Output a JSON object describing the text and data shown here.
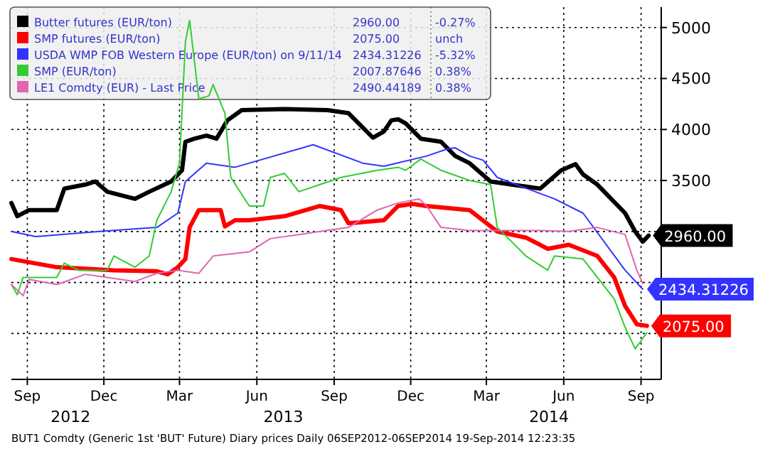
{
  "chart_data": {
    "type": "line",
    "legend": "top left",
    "grid": true,
    "xlim": [
      "2012-08-13",
      "2014-09-25"
    ],
    "xticks": [
      {
        "value": "2012-09-01",
        "label": "Sep"
      },
      {
        "value": "2012-12-01",
        "label": "Dec"
      },
      {
        "value": "2013-03-01",
        "label": "Mar"
      },
      {
        "value": "2013-06-01",
        "label": "Jun"
      },
      {
        "value": "2013-09-01",
        "label": "Sep"
      },
      {
        "value": "2013-12-01",
        "label": "Dec"
      },
      {
        "value": "2014-03-01",
        "label": "Mar"
      },
      {
        "value": "2014-06-01",
        "label": "Jun"
      },
      {
        "value": "2014-09-01",
        "label": "Sep"
      }
    ],
    "ylim": [
      1550,
      5200
    ],
    "yticks": [
      {
        "value": 2000,
        "label": null
      },
      {
        "value": 2500,
        "label": null
      },
      {
        "value": 3000,
        "label": null
      },
      3500,
      4000,
      4500,
      5000
    ],
    "annotations": [
      "2960.00",
      "-0.27%",
      "2075.00",
      "unch",
      "2434.31226",
      "-5.32%",
      "2007.87646",
      "0.38%",
      "2490.44189",
      "0.38%",
      "2012",
      "2013",
      "2014",
      "BUT1 Comdty (Generic 1st 'BUT' Future) Diary prices  Daily 06SEP2012-06SEP2014  19-Sep-2014 12:23:35"
    ],
    "series": [
      {
        "name": "Butter futures (EUR/ton)",
        "color": "#000000",
        "x": [
          "2012-08-13",
          "2012-08-20",
          "2012-09-03",
          "2012-10-06",
          "2012-10-15",
          "2012-11-09",
          "2012-11-21",
          "2012-12-05",
          "2013-01-07",
          "2013-01-24",
          "2013-02-19",
          "2013-03-04",
          "2013-03-08",
          "2013-03-19",
          "2013-04-02",
          "2013-04-14",
          "2013-04-27",
          "2013-05-14",
          "2013-07-04",
          "2013-08-24",
          "2013-09-18",
          "2013-10-17",
          "2013-10-30",
          "2013-11-08",
          "2013-11-16",
          "2013-11-25",
          "2013-12-13",
          "2014-01-06",
          "2014-01-23",
          "2014-02-09",
          "2014-03-06",
          "2014-05-04",
          "2014-05-29",
          "2014-06-15",
          "2014-06-24",
          "2014-07-11",
          "2014-08-13",
          "2014-08-25",
          "2014-09-03",
          "2014-09-10"
        ],
        "values": [
          3280,
          3150,
          3210,
          3210,
          3420,
          3460,
          3490,
          3390,
          3320,
          3390,
          3490,
          3600,
          3880,
          3910,
          3940,
          3910,
          4090,
          4190,
          4200,
          4190,
          4160,
          3920,
          3980,
          4090,
          4100,
          4060,
          3910,
          3880,
          3740,
          3670,
          3490,
          3420,
          3600,
          3660,
          3560,
          3460,
          3180,
          3000,
          2900,
          2960
        ],
        "value_labels": [
          null,
          null,
          null,
          null,
          null,
          null,
          null,
          null,
          null,
          null,
          null,
          null,
          null,
          null,
          null,
          null,
          null,
          null,
          null,
          null,
          null,
          null,
          null,
          null,
          null,
          null,
          null,
          null,
          null,
          null,
          null,
          null,
          null,
          null,
          null,
          null,
          null,
          null,
          null,
          "2960.00"
        ]
      },
      {
        "name": "SMP futures (EUR/ton)",
        "color": "#ff0000",
        "x": [
          "2012-08-13",
          "2012-10-06",
          "2012-12-13",
          "2013-02-02",
          "2013-02-15",
          "2013-02-27",
          "2013-03-08",
          "2013-03-13",
          "2013-03-24",
          "2013-04-19",
          "2013-04-24",
          "2013-05-06",
          "2013-05-23",
          "2013-07-04",
          "2013-08-15",
          "2013-09-09",
          "2013-09-18",
          "2013-10-30",
          "2013-11-16",
          "2013-12-03",
          "2013-12-20",
          "2014-02-09",
          "2014-03-14",
          "2014-04-17",
          "2014-05-13",
          "2014-06-07",
          "2014-07-11",
          "2014-07-31",
          "2014-08-13",
          "2014-08-27",
          "2014-09-08"
        ],
        "values": [
          2730,
          2650,
          2620,
          2610,
          2580,
          2650,
          2730,
          3040,
          3210,
          3210,
          3050,
          3110,
          3110,
          3150,
          3250,
          3210,
          3080,
          3110,
          3250,
          3270,
          3250,
          3210,
          3000,
          2940,
          2830,
          2870,
          2760,
          2550,
          2270,
          2090,
          2075
        ],
        "value_labels": [
          null,
          null,
          null,
          null,
          null,
          null,
          null,
          null,
          null,
          null,
          null,
          null,
          null,
          null,
          null,
          null,
          null,
          null,
          null,
          null,
          null,
          null,
          null,
          null,
          null,
          null,
          null,
          null,
          null,
          null,
          "2075.00"
        ]
      },
      {
        "name": "USDA WMP FOB Western Europe (EUR/ton) on 9/11/14",
        "color": "#3333ff",
        "x": [
          "2012-08-13",
          "2012-09-11",
          "2012-11-26",
          "2013-02-02",
          "2013-02-27",
          "2013-03-08",
          "2013-04-02",
          "2013-05-06",
          "2013-08-07",
          "2013-10-05",
          "2013-10-30",
          "2013-12-20",
          "2014-01-14",
          "2014-01-23",
          "2014-02-09",
          "2014-02-25",
          "2014-03-14",
          "2014-05-21",
          "2014-06-24",
          "2014-08-13",
          "2014-09-03"
        ],
        "values": [
          3000,
          2950,
          3000,
          3040,
          3180,
          3490,
          3670,
          3630,
          3850,
          3670,
          3640,
          3740,
          3810,
          3820,
          3740,
          3700,
          3530,
          3320,
          3180,
          2620,
          2434.31226
        ],
        "value_labels": [
          null,
          null,
          null,
          null,
          null,
          null,
          null,
          null,
          null,
          null,
          null,
          null,
          null,
          null,
          null,
          null,
          null,
          null,
          null,
          null,
          "2434.31226"
        ]
      },
      {
        "name": "SMP (EUR/ton)",
        "color": "#33cc33",
        "x": [
          "2012-08-13",
          "2012-08-20",
          "2012-08-27",
          "2012-10-06",
          "2012-10-15",
          "2012-11-01",
          "2012-12-05",
          "2012-12-13",
          "2013-01-07",
          "2013-01-24",
          "2013-02-02",
          "2013-02-19",
          "2013-03-01",
          "2013-03-08",
          "2013-03-13",
          "2013-03-24",
          "2013-04-05",
          "2013-04-10",
          "2013-04-24",
          "2013-05-01",
          "2013-05-23",
          "2013-06-09",
          "2013-06-17",
          "2013-07-04",
          "2013-07-21",
          "2013-08-15",
          "2013-09-09",
          "2013-10-22",
          "2013-11-16",
          "2013-11-25",
          "2013-12-13",
          "2014-01-06",
          "2014-02-09",
          "2014-03-06",
          "2014-03-14",
          "2014-04-17",
          "2014-05-13",
          "2014-05-21",
          "2014-06-24",
          "2014-07-11",
          "2014-07-31",
          "2014-08-13",
          "2014-08-25",
          "2014-09-08"
        ],
        "values": [
          2480,
          2380,
          2550,
          2550,
          2690,
          2620,
          2620,
          2760,
          2650,
          2760,
          3110,
          3390,
          3670,
          4860,
          5070,
          4300,
          4330,
          4440,
          4160,
          3530,
          3250,
          3250,
          3530,
          3570,
          3390,
          3460,
          3530,
          3600,
          3630,
          3600,
          3710,
          3600,
          3500,
          3460,
          3040,
          2760,
          2620,
          2760,
          2730,
          2550,
          2340,
          2060,
          1850,
          2008
        ]
      },
      {
        "name": "LE1 Comdty (EUR) - Last Price",
        "color": "#e066b0",
        "x": [
          "2012-08-13",
          "2012-08-27",
          "2012-09-03",
          "2012-10-06",
          "2012-11-09",
          "2012-12-05",
          "2013-01-07",
          "2013-02-02",
          "2013-02-27",
          "2013-03-24",
          "2013-04-10",
          "2013-05-23",
          "2013-06-17",
          "2013-07-21",
          "2013-08-15",
          "2013-09-18",
          "2013-10-22",
          "2013-11-16",
          "2013-12-11",
          "2013-12-20",
          "2014-01-06",
          "2014-02-09",
          "2014-03-14",
          "2014-05-04",
          "2014-06-07",
          "2014-07-11",
          "2014-08-13",
          "2014-08-27",
          "2014-09-03"
        ],
        "values": [
          2480,
          2370,
          2530,
          2480,
          2580,
          2550,
          2510,
          2590,
          2620,
          2590,
          2760,
          2800,
          2930,
          2970,
          3000,
          3040,
          3210,
          3280,
          3320,
          3250,
          3040,
          3010,
          3010,
          3010,
          3000,
          3040,
          2970,
          2620,
          2490
        ]
      }
    ]
  }
}
